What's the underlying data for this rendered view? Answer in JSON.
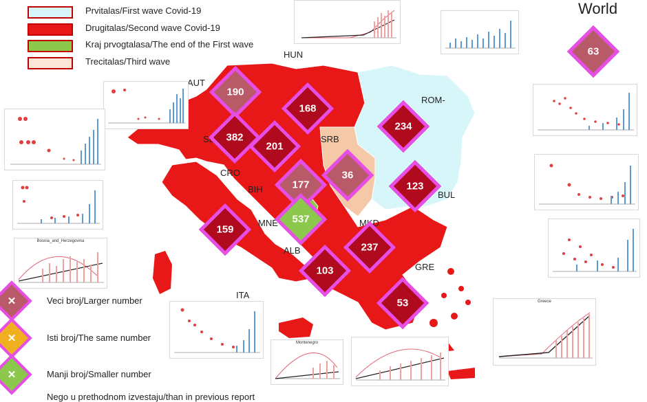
{
  "legend": [
    {
      "label": "Prvitalas/First wave Covid-19",
      "fill": "#d6f6fa"
    },
    {
      "label": "Drugitalas/Second wave Covid-19",
      "fill": "#e81818"
    },
    {
      "label": "Kraj prvogtalasa/The end of the First wave",
      "fill": "#8cc84b"
    },
    {
      "label": "Trecitalas/Third wave",
      "fill": "#fbe4d8"
    }
  ],
  "world": {
    "title": "World",
    "value": "63"
  },
  "countries": {
    "hun": "HUN",
    "aut": "AUT",
    "rom": "ROM-",
    "slo": "SL",
    "srb": "SRB",
    "cro": "CRO",
    "bih": "BIH",
    "bul": "BUL",
    "mne": "MNE",
    "mkd": "MKD",
    "alb": "ALB",
    "gre": "GRE",
    "ita": "ITA"
  },
  "badges": {
    "aut": "190",
    "hun": "168",
    "rom": "234",
    "slo": "382",
    "cro": "201",
    "srb": "36",
    "bih": "177",
    "bul": "123",
    "mne": "537",
    "ita": "159",
    "mkd": "237",
    "alb": "103",
    "gre": "53"
  },
  "badge_colors": {
    "larger": "#b95a68",
    "same": "#f0b020",
    "smaller": "#8cc84b",
    "red": "#b00a1e"
  },
  "thumbnails": {
    "montenegro": "Montenegro",
    "greece": "Greece",
    "bosnia": "Bosnia_and_Herzegovina"
  },
  "key": {
    "larger": "Veci broj/Larger number",
    "same": "Isti broj/The same number",
    "smaller": "Manji broj/Smaller number",
    "note": "Nego u prethodnom izvestaju/than in previous report"
  }
}
